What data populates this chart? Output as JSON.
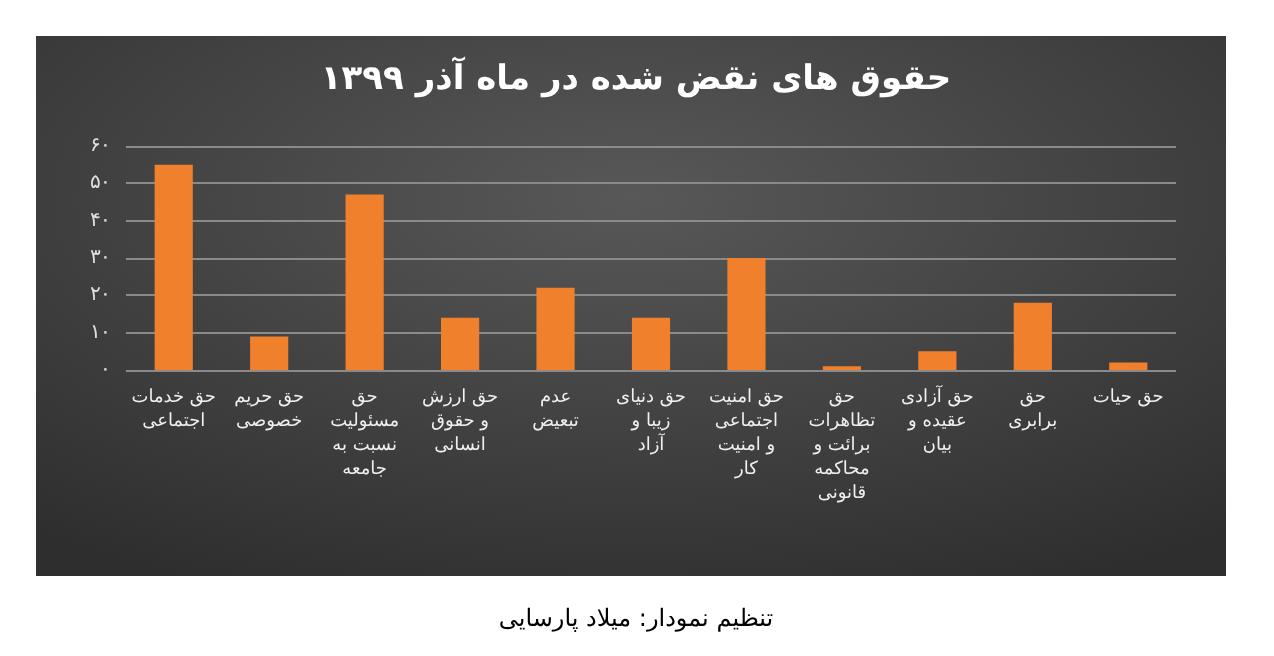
{
  "chart_data": {
    "type": "bar",
    "title": "حقوق های نقض شده در ماه آذر ۱۳۹۹",
    "categories": [
      "حق خدمات اجتماعی",
      "حق حریم خصوصی",
      "حق مسئولیت نسبت به جامعه",
      "حق ارزش و حقوق انسانی",
      "عدم تبعیض",
      "حق دنیای زیبا و آزاد",
      "حق امنیت اجتماعی و امنیت کار",
      "حق تظاهرات برائت و محاکمه قانونی",
      "حق آزادی عقیده و بیان",
      "حق برابری",
      "حق حیات"
    ],
    "values": [
      55,
      9,
      47,
      14,
      22,
      14,
      30,
      1,
      5,
      18,
      2
    ],
    "color": "#f0802c",
    "ylim": [
      0,
      60
    ],
    "yticks": [
      {
        "value": 0,
        "label": "۰"
      },
      {
        "value": 10,
        "label": "۱۰"
      },
      {
        "value": 20,
        "label": "۲۰"
      },
      {
        "value": 30,
        "label": "۳۰"
      },
      {
        "value": 40,
        "label": "۴۰"
      },
      {
        "value": 50,
        "label": "۵۰"
      },
      {
        "value": 60,
        "label": "۶۰"
      }
    ],
    "grid": "y",
    "annotations": [
      "تنظیم نمودار: میلاد پارسایی"
    ]
  }
}
